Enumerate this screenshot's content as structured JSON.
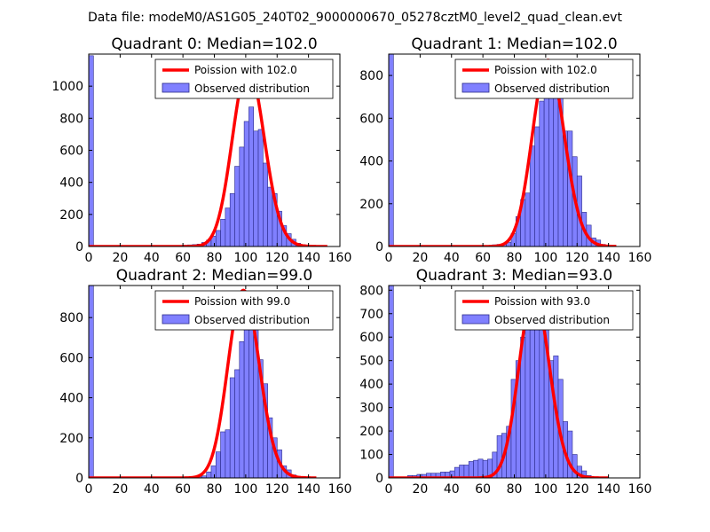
{
  "figure": {
    "suptitle": "Data file: modeM0/AS1G05_240T02_9000000670_05278cztM0_level2_quad_clean.evt"
  },
  "colors": {
    "bar_fill": "#8080ff",
    "bar_edge": "#2a2a8a",
    "fit_line": "#ff0000"
  },
  "chart_data": [
    {
      "type": "bar",
      "title": "Quadrant 0: Median=102.0",
      "xlim": [
        0,
        160
      ],
      "ylim": [
        0,
        1200
      ],
      "xticks": [
        0,
        20,
        40,
        60,
        80,
        100,
        120,
        140,
        160
      ],
      "yticks": [
        0,
        200,
        400,
        600,
        800,
        1000
      ],
      "legend": {
        "loc": "top-right",
        "fit_label": "Poission with 102.0",
        "hist_label": "Observed distribution"
      },
      "bin_width": 3,
      "bars": [
        [
          0,
          1190
        ],
        [
          60,
          8
        ],
        [
          63,
          10
        ],
        [
          66,
          12
        ],
        [
          69,
          15
        ],
        [
          72,
          25
        ],
        [
          75,
          40
        ],
        [
          78,
          65
        ],
        [
          81,
          100
        ],
        [
          84,
          170
        ],
        [
          87,
          240
        ],
        [
          90,
          330
        ],
        [
          93,
          500
        ],
        [
          96,
          620
        ],
        [
          99,
          780
        ],
        [
          102,
          870
        ],
        [
          105,
          720
        ],
        [
          108,
          730
        ],
        [
          111,
          520
        ],
        [
          114,
          370
        ],
        [
          117,
          330
        ],
        [
          120,
          220
        ],
        [
          123,
          130
        ],
        [
          126,
          80
        ],
        [
          129,
          45
        ],
        [
          132,
          20
        ],
        [
          135,
          12
        ],
        [
          138,
          5
        ]
      ],
      "fit": {
        "lambda": 102,
        "peak": 1120,
        "xmin": 0,
        "xmax": 152
      }
    },
    {
      "type": "bar",
      "title": "Quadrant 1: Median=102.0",
      "xlim": [
        0,
        160
      ],
      "ylim": [
        0,
        900
      ],
      "xticks": [
        0,
        20,
        40,
        60,
        80,
        100,
        120,
        140,
        160
      ],
      "yticks": [
        0,
        200,
        400,
        600,
        800
      ],
      "legend": {
        "loc": "top-right",
        "fit_label": "Poission with 102.0",
        "hist_label": "Observed distribution"
      },
      "bin_width": 3,
      "bars": [
        [
          0,
          900
        ],
        [
          63,
          5
        ],
        [
          66,
          8
        ],
        [
          69,
          10
        ],
        [
          72,
          12
        ],
        [
          75,
          20
        ],
        [
          78,
          60
        ],
        [
          81,
          140
        ],
        [
          84,
          220
        ],
        [
          87,
          250
        ],
        [
          90,
          470
        ],
        [
          93,
          560
        ],
        [
          96,
          680
        ],
        [
          99,
          720
        ],
        [
          102,
          780
        ],
        [
          105,
          770
        ],
        [
          108,
          730
        ],
        [
          111,
          540
        ],
        [
          114,
          540
        ],
        [
          117,
          420
        ],
        [
          120,
          330
        ],
        [
          123,
          160
        ],
        [
          126,
          100
        ],
        [
          129,
          40
        ],
        [
          132,
          30
        ],
        [
          135,
          10
        ],
        [
          138,
          5
        ]
      ],
      "fit": {
        "lambda": 102,
        "peak": 870,
        "xmin": 0,
        "xmax": 145
      }
    },
    {
      "type": "bar",
      "title": "Quadrant 2: Median=99.0",
      "xlim": [
        0,
        160
      ],
      "ylim": [
        0,
        960
      ],
      "xticks": [
        0,
        20,
        40,
        60,
        80,
        100,
        120,
        140,
        160
      ],
      "yticks": [
        0,
        200,
        400,
        600,
        800
      ],
      "legend": {
        "loc": "top-right",
        "fit_label": "Poission with 99.0",
        "hist_label": "Observed distribution"
      },
      "bin_width": 3,
      "bars": [
        [
          0,
          960
        ],
        [
          69,
          5
        ],
        [
          72,
          10
        ],
        [
          75,
          30
        ],
        [
          78,
          60
        ],
        [
          81,
          130
        ],
        [
          84,
          230
        ],
        [
          87,
          240
        ],
        [
          90,
          500
        ],
        [
          93,
          540
        ],
        [
          96,
          680
        ],
        [
          99,
          790
        ],
        [
          102,
          840
        ],
        [
          105,
          760
        ],
        [
          108,
          590
        ],
        [
          111,
          470
        ],
        [
          114,
          300
        ],
        [
          117,
          200
        ],
        [
          120,
          140
        ],
        [
          123,
          60
        ],
        [
          126,
          40
        ],
        [
          129,
          15
        ],
        [
          132,
          5
        ]
      ],
      "fit": {
        "lambda": 99,
        "peak": 935,
        "xmin": 0,
        "xmax": 145
      }
    },
    {
      "type": "bar",
      "title": "Quadrant 3: Median=93.0",
      "xlim": [
        0,
        160
      ],
      "ylim": [
        0,
        820
      ],
      "xticks": [
        0,
        20,
        40,
        60,
        80,
        100,
        120,
        140,
        160
      ],
      "yticks": [
        0,
        100,
        200,
        300,
        400,
        500,
        600,
        700,
        800
      ],
      "legend": {
        "loc": "top-right",
        "fit_label": "Poission with 93.0",
        "hist_label": "Observed distribution"
      },
      "bin_width": 3,
      "bars": [
        [
          0,
          820
        ],
        [
          12,
          10
        ],
        [
          15,
          10
        ],
        [
          18,
          15
        ],
        [
          21,
          15
        ],
        [
          24,
          20
        ],
        [
          27,
          20
        ],
        [
          30,
          20
        ],
        [
          33,
          25
        ],
        [
          36,
          25
        ],
        [
          39,
          30
        ],
        [
          42,
          45
        ],
        [
          45,
          55
        ],
        [
          48,
          55
        ],
        [
          51,
          70
        ],
        [
          54,
          75
        ],
        [
          57,
          80
        ],
        [
          60,
          75
        ],
        [
          63,
          80
        ],
        [
          66,
          110
        ],
        [
          69,
          180
        ],
        [
          72,
          190
        ],
        [
          75,
          220
        ],
        [
          78,
          420
        ],
        [
          81,
          500
        ],
        [
          84,
          600
        ],
        [
          87,
          690
        ],
        [
          90,
          720
        ],
        [
          93,
          730
        ],
        [
          96,
          720
        ],
        [
          99,
          680
        ],
        [
          102,
          500
        ],
        [
          105,
          520
        ],
        [
          108,
          420
        ],
        [
          111,
          240
        ],
        [
          114,
          200
        ],
        [
          117,
          100
        ],
        [
          120,
          50
        ],
        [
          123,
          30
        ],
        [
          126,
          10
        ]
      ],
      "fit": {
        "lambda": 93,
        "peak": 790,
        "xmin": 0,
        "xmax": 140
      }
    }
  ]
}
